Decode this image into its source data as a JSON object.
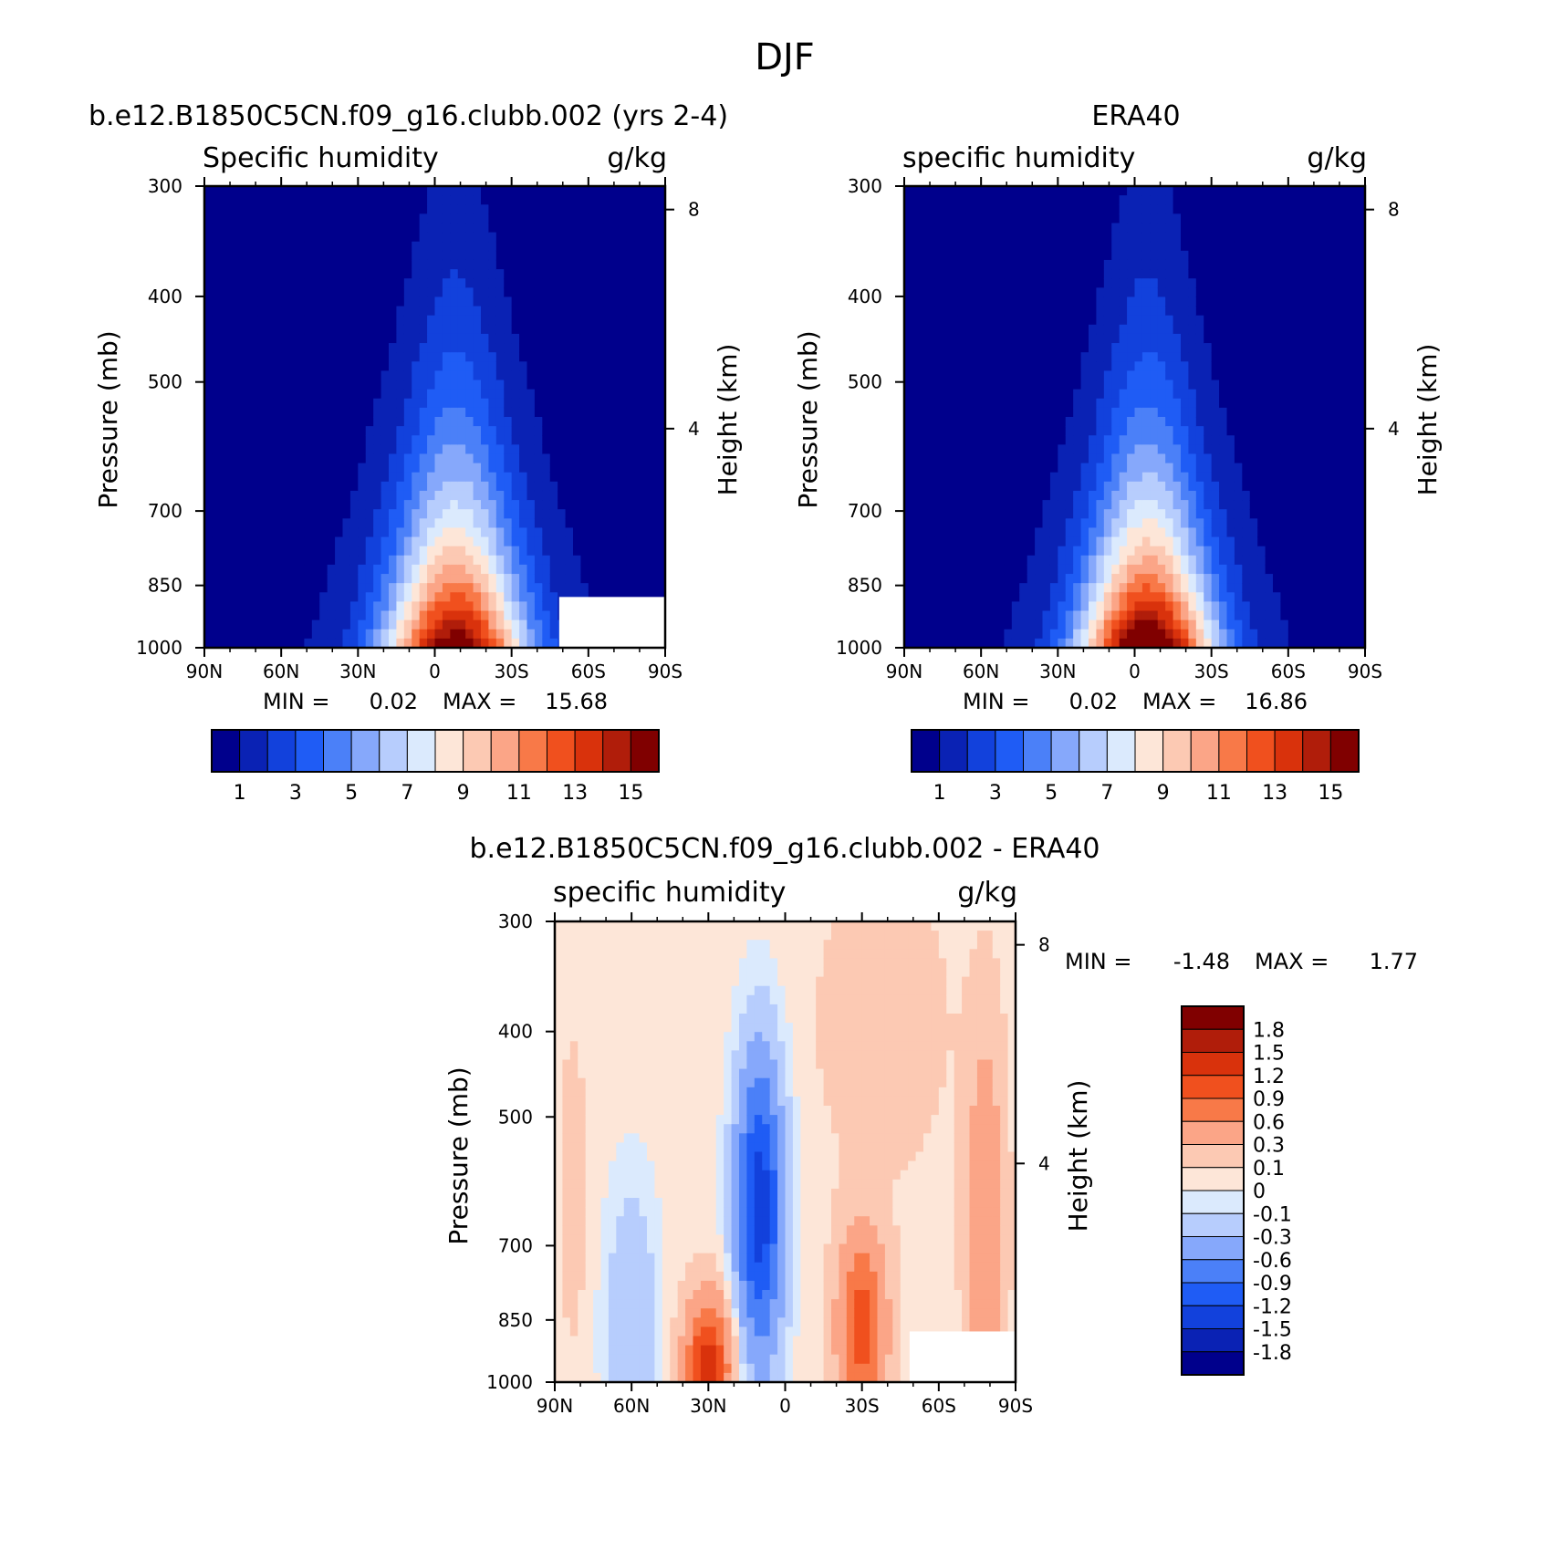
{
  "chart_data": {
    "title": "DJF",
    "panels": [
      {
        "id": "top-left",
        "type": "heatmap",
        "case_title": "b.e12.B1850C5CN.f09_g16.clubb.002 (yrs 2-4)",
        "left_title": "Specific humidity",
        "right_title": "g/kg",
        "xlabel": "",
        "ylabel": "Pressure (mb)",
        "y2label": "Height (km)",
        "x_ticks": [
          "90N",
          "60N",
          "30N",
          "0",
          "30S",
          "60S",
          "90S"
        ],
        "y_ticks": [
          "300",
          "400",
          "500",
          "700",
          "850",
          "1000"
        ],
        "y2_ticks": [
          "8",
          "4"
        ],
        "min_label": "MIN =",
        "min_value": "0.02",
        "max_label": "MAX =",
        "max_value": "15.68",
        "min": 0.02,
        "max": 15.68,
        "colorbar_labels": [
          "1",
          "3",
          "5",
          "7",
          "9",
          "11",
          "13",
          "15"
        ],
        "field": {
          "peak_lat": -8,
          "peak_value": 15.68,
          "lat_width_surface": 28,
          "lat_width_aloft": 14,
          "scale_height_levels": 0.75
        }
      },
      {
        "id": "top-right",
        "type": "heatmap",
        "case_title": "ERA40",
        "left_title": "specific humidity",
        "right_title": "g/kg",
        "xlabel": "",
        "ylabel": "Pressure (mb)",
        "y2label": "Height (km)",
        "x_ticks": [
          "90N",
          "60N",
          "30N",
          "0",
          "30S",
          "60S",
          "90S"
        ],
        "y_ticks": [
          "300",
          "400",
          "500",
          "700",
          "850",
          "1000"
        ],
        "y2_ticks": [
          "8",
          "4"
        ],
        "min_label": "MIN =",
        "min_value": "0.02",
        "max_label": "MAX =",
        "max_value": "16.86",
        "min": 0.02,
        "max": 16.86,
        "colorbar_labels": [
          "1",
          "3",
          "5",
          "7",
          "9",
          "11",
          "13",
          "15"
        ],
        "field": {
          "peak_lat": -5,
          "peak_value": 16.86,
          "lat_width_surface": 27,
          "lat_width_aloft": 13,
          "scale_height_levels": 0.72
        }
      },
      {
        "id": "bottom-diff",
        "type": "heatmap",
        "case_title": "b.e12.B1850C5CN.f09_g16.clubb.002 - ERA40",
        "left_title": "specific humidity",
        "right_title": "g/kg",
        "xlabel": "",
        "ylabel": "Pressure (mb)",
        "y2label": "Height (km)",
        "x_ticks": [
          "90N",
          "60N",
          "30N",
          "0",
          "30S",
          "60S",
          "90S"
        ],
        "y_ticks": [
          "300",
          "400",
          "500",
          "700",
          "850",
          "1000"
        ],
        "y2_ticks": [
          "8",
          "4"
        ],
        "min_label": "MIN =",
        "min_value": "-1.48",
        "max_label": "MAX =",
        "max_value": "1.77",
        "min": -1.48,
        "max": 1.77,
        "colorbar_labels": [
          "1.8",
          "1.5",
          "1.2",
          "0.9",
          "0.6",
          "0.3",
          "0.1",
          "0",
          "-0.1",
          "-0.3",
          "-0.6",
          "-0.9",
          "-1.2",
          "-1.5",
          "-1.8"
        ],
        "field": {
          "features": [
            {
              "lat": 10,
              "level": 0.38,
              "amp": -1.45,
              "wlat": 9,
              "wlev": 0.32
            },
            {
              "lat": 30,
              "level": 0.04,
              "amp": 1.25,
              "wlat": 9,
              "wlev": 0.14
            },
            {
              "lat": -30,
              "level": 0.12,
              "amp": 1.05,
              "wlat": 9,
              "wlev": 0.2
            },
            {
              "lat": -78,
              "level": 0.35,
              "amp": 0.55,
              "wlat": 7,
              "wlev": 0.4
            },
            {
              "lat": -38,
              "level": 0.78,
              "amp": 0.2,
              "wlat": 22,
              "wlev": 0.28
            },
            {
              "lat": 60,
              "level": 0.12,
              "amp": -0.35,
              "wlat": 10,
              "wlev": 0.3
            },
            {
              "lat": 83,
              "level": 0.42,
              "amp": 0.16,
              "wlat": 5,
              "wlev": 0.3
            }
          ],
          "background": 0.05
        }
      }
    ],
    "colorbars": {
      "q_levels": [
        0.5,
        1.5,
        2.5,
        3.5,
        4.5,
        5.5,
        6.5,
        7.5,
        8.5,
        9.5,
        10.5,
        11.5,
        12.5,
        13.5,
        14.5
      ],
      "q_colors": [
        "#00008c",
        "#0a22b4",
        "#1241dc",
        "#1f5cf5",
        "#4b80f8",
        "#86a8fb",
        "#b7cdfd",
        "#dbeafd",
        "#fde6d8",
        "#fcc9b3",
        "#fba587",
        "#f87948",
        "#f0501e",
        "#d9320c",
        "#b01d0a",
        "#800000"
      ],
      "d_levels": [
        -1.8,
        -1.5,
        -1.2,
        -0.9,
        -0.6,
        -0.3,
        -0.1,
        0,
        0.1,
        0.3,
        0.6,
        0.9,
        1.2,
        1.5,
        1.8
      ],
      "d_colors": [
        "#00008c",
        "#0a22b4",
        "#1241dc",
        "#1f5cf5",
        "#4b80f8",
        "#86a8fb",
        "#b7cdfd",
        "#dbeafd",
        "#fde6d8",
        "#fcc9b3",
        "#fba587",
        "#f87948",
        "#f0501e",
        "#d9320c",
        "#b01d0a",
        "#800000"
      ]
    }
  }
}
